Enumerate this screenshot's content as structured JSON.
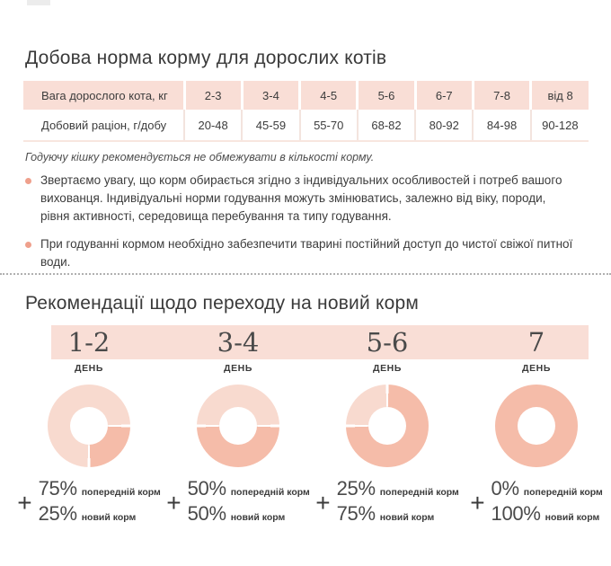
{
  "colors": {
    "accent_pink": "#f9ded6",
    "donut_light": "#f8dacf",
    "donut_dark": "#f5bca9",
    "bullet_dot": "#efa08c",
    "text_dark": "#3c3c3c"
  },
  "section1": {
    "title": "Добова норма корму для дорослих котів",
    "table": {
      "row1_label": "Вага дорослого кота, кг",
      "row2_label": "Добовий раціон, г/добу",
      "weights": [
        "2-3",
        "3-4",
        "4-5",
        "5-6",
        "6-7",
        "7-8",
        "від 8"
      ],
      "rations": [
        "20-48",
        "45-59",
        "55-70",
        "68-82",
        "80-92",
        "84-98",
        "90-128"
      ]
    },
    "note": "Годуючу кішку рекомендується не обмежувати в кількості корму.",
    "bullets": [
      "Звертаємо увагу, що корм обирається згідно з індивідуальних особливостей і потреб вашого вихованця. Індивідуальні норми годування можуть змінюватись, залежно від віку, породи, рівня активності, середовища перебування та типу годування.",
      "При годуванні кормом необхідно забезпечити тварині постійний доступ до чистої свіжої питної води."
    ]
  },
  "section2": {
    "title": "Рекомендації щодо переходу на новий корм",
    "day_word": "ДЕНЬ",
    "plus": "+",
    "columns": [
      {
        "days": "1-2",
        "old_pct": "75%",
        "old_label": "попередній корм",
        "new_pct": "25%",
        "new_label": "новий корм",
        "donut": {
          "start": 180,
          "light_deg": 270
        }
      },
      {
        "days": "3-4",
        "old_pct": "50%",
        "old_label": "попередній корм",
        "new_pct": "50%",
        "new_label": "новий корм",
        "donut": {
          "start": 270,
          "light_deg": 180
        }
      },
      {
        "days": "5-6",
        "old_pct": "25%",
        "old_label": "попередній корм",
        "new_pct": "75%",
        "new_label": "новий корм",
        "donut": {
          "start": 270,
          "light_deg": 90
        }
      },
      {
        "days": "7",
        "old_pct": "0%",
        "old_label": "попередній корм",
        "new_pct": "100%",
        "new_label": "новий корм",
        "donut": {
          "start": 0,
          "light_deg": 0
        }
      }
    ]
  },
  "chart_data": {
    "type": "pie",
    "title": "Рекомендації щодо переходу на новий корм",
    "charts": [
      {
        "label": "1-2 день",
        "slices": [
          {
            "name": "попередній корм",
            "value": 75
          },
          {
            "name": "новий корм",
            "value": 25
          }
        ]
      },
      {
        "label": "3-4 день",
        "slices": [
          {
            "name": "попередній корм",
            "value": 50
          },
          {
            "name": "новий корм",
            "value": 50
          }
        ]
      },
      {
        "label": "5-6 день",
        "slices": [
          {
            "name": "попередній корм",
            "value": 25
          },
          {
            "name": "новий корм",
            "value": 75
          }
        ]
      },
      {
        "label": "7 день",
        "slices": [
          {
            "name": "попередній корм",
            "value": 0
          },
          {
            "name": "новий корм",
            "value": 100
          }
        ]
      }
    ],
    "table_data": {
      "type": "table",
      "title": "Добова норма корму для дорослих котів",
      "columns": [
        "2-3",
        "3-4",
        "4-5",
        "5-6",
        "6-7",
        "7-8",
        "від 8"
      ],
      "rows": [
        {
          "name": "Добовий раціон, г/добу",
          "values": [
            "20-48",
            "45-59",
            "55-70",
            "68-82",
            "80-92",
            "84-98",
            "90-128"
          ]
        }
      ]
    }
  }
}
